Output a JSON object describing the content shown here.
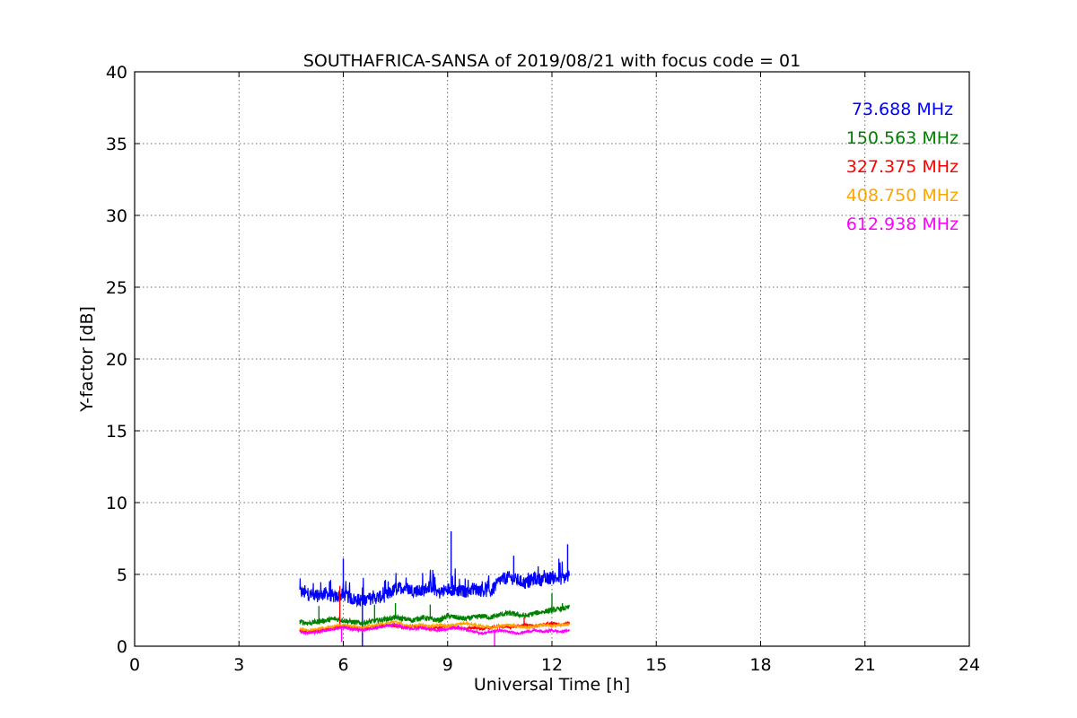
{
  "chart_data": {
    "type": "line",
    "title": "SOUTHAFRICA-SANSA of 2019/08/21 with focus code = 01",
    "xlabel": "Universal Time [h]",
    "ylabel": "Y-factor [dB]",
    "xlim": [
      0,
      24
    ],
    "ylim": [
      0,
      40
    ],
    "xticks": [
      0,
      3,
      6,
      9,
      12,
      15,
      18,
      21,
      24
    ],
    "yticks": [
      0,
      5,
      10,
      15,
      20,
      25,
      30,
      35,
      40
    ],
    "grid": true,
    "legend_position": "top-right",
    "series": [
      {
        "name": "73.688 MHz",
        "color": "#0000ff",
        "x": [
          4.75,
          5.0,
          5.25,
          5.5,
          5.75,
          6.0,
          6.25,
          6.5,
          6.75,
          7.0,
          7.25,
          7.5,
          7.75,
          8.0,
          8.25,
          8.5,
          8.75,
          9.0,
          9.25,
          9.5,
          9.75,
          10.0,
          10.25,
          10.5,
          10.75,
          11.0,
          11.25,
          11.5,
          11.75,
          12.0,
          12.25,
          12.5
        ],
        "y": [
          3.8,
          3.6,
          3.5,
          3.7,
          3.4,
          3.6,
          3.3,
          3.2,
          3.3,
          3.4,
          3.5,
          4.0,
          4.1,
          3.9,
          3.8,
          4.2,
          3.7,
          4.0,
          3.9,
          3.8,
          4.0,
          3.9,
          3.8,
          4.6,
          4.8,
          4.6,
          4.4,
          4.7,
          4.6,
          4.8,
          4.7,
          4.9
        ],
        "spikes": [
          [
            6.0,
            6.1
          ],
          [
            9.1,
            8.0
          ],
          [
            10.9,
            6.3
          ],
          [
            12.45,
            7.1
          ],
          [
            6.55,
            0.0
          ]
        ]
      },
      {
        "name": "150.563 MHz",
        "color": "#008000",
        "x": [
          4.75,
          5.0,
          5.25,
          5.5,
          5.75,
          6.0,
          6.25,
          6.5,
          6.75,
          7.0,
          7.25,
          7.5,
          7.75,
          8.0,
          8.25,
          8.5,
          8.75,
          9.0,
          9.25,
          9.5,
          9.75,
          10.0,
          10.25,
          10.5,
          10.75,
          11.0,
          11.25,
          11.5,
          11.75,
          12.0,
          12.25,
          12.5
        ],
        "y": [
          1.7,
          1.6,
          1.7,
          1.8,
          1.9,
          1.8,
          1.7,
          1.6,
          1.7,
          1.8,
          1.9,
          2.0,
          1.9,
          1.8,
          2.0,
          1.9,
          1.8,
          2.1,
          2.0,
          1.9,
          2.0,
          2.1,
          2.0,
          2.2,
          2.3,
          2.2,
          2.1,
          2.3,
          2.4,
          2.5,
          2.6,
          2.7
        ],
        "spikes": [
          [
            5.3,
            2.8
          ],
          [
            6.9,
            2.9
          ],
          [
            7.5,
            3.0
          ],
          [
            8.5,
            2.9
          ],
          [
            12.0,
            3.7
          ],
          [
            12.3,
            3.0
          ]
        ]
      },
      {
        "name": "327.375 MHz",
        "color": "#ff0000",
        "x": [
          4.75,
          5.0,
          5.25,
          5.5,
          5.75,
          6.0,
          6.25,
          6.5,
          6.75,
          7.0,
          7.25,
          7.5,
          7.75,
          8.0,
          8.25,
          8.5,
          8.75,
          9.0,
          9.25,
          9.5,
          9.75,
          10.0,
          10.25,
          10.5,
          10.75,
          11.0,
          11.25,
          11.5,
          11.75,
          12.0,
          12.25,
          12.5
        ],
        "y": [
          1.1,
          1.0,
          1.1,
          1.2,
          1.3,
          1.4,
          1.3,
          1.2,
          1.3,
          1.4,
          1.5,
          1.4,
          1.3,
          1.4,
          1.3,
          1.2,
          1.3,
          1.4,
          1.3,
          1.2,
          1.3,
          1.2,
          1.3,
          1.4,
          1.3,
          1.4,
          1.5,
          1.4,
          1.5,
          1.6,
          1.5,
          1.6
        ],
        "spikes": [
          [
            5.9,
            4.2
          ],
          [
            11.2,
            2.0
          ]
        ]
      },
      {
        "name": "408.750 MHz",
        "color": "#ffa500",
        "x": [
          4.75,
          5.0,
          5.25,
          5.5,
          5.75,
          6.0,
          6.25,
          6.5,
          6.75,
          7.0,
          7.25,
          7.5,
          7.75,
          8.0,
          8.25,
          8.5,
          8.75,
          9.0,
          9.25,
          9.5,
          9.75,
          10.0,
          10.25,
          10.5,
          10.75,
          11.0,
          11.25,
          11.5,
          11.75,
          12.0,
          12.25,
          12.5
        ],
        "y": [
          1.2,
          1.1,
          1.2,
          1.3,
          1.4,
          1.5,
          1.4,
          1.3,
          1.4,
          1.5,
          1.6,
          1.7,
          1.5,
          1.4,
          1.5,
          1.4,
          1.5,
          1.4,
          1.5,
          1.6,
          1.5,
          1.4,
          1.3,
          1.4,
          1.5,
          1.4,
          1.3,
          1.4,
          1.5,
          1.4,
          1.5,
          1.5
        ],
        "spikes": []
      },
      {
        "name": "612.938 MHz",
        "color": "#ff00ff",
        "x": [
          4.75,
          5.0,
          5.25,
          5.5,
          5.75,
          6.0,
          6.25,
          6.5,
          6.75,
          7.0,
          7.25,
          7.5,
          7.75,
          8.0,
          8.25,
          8.5,
          8.75,
          9.0,
          9.25,
          9.5,
          9.75,
          10.0,
          10.25,
          10.5,
          10.75,
          11.0,
          11.25,
          11.5,
          11.75,
          12.0,
          12.25,
          12.5
        ],
        "y": [
          1.0,
          0.9,
          1.0,
          1.1,
          1.2,
          1.3,
          1.2,
          1.1,
          1.2,
          1.3,
          1.4,
          1.5,
          1.3,
          1.2,
          1.3,
          1.2,
          1.1,
          1.2,
          1.3,
          1.2,
          1.0,
          0.9,
          1.0,
          1.1,
          1.0,
          0.9,
          1.0,
          1.1,
          1.0,
          1.1,
          1.0,
          1.1
        ],
        "spikes": [
          [
            10.35,
            0.0
          ],
          [
            5.95,
            0.3
          ]
        ]
      }
    ]
  }
}
